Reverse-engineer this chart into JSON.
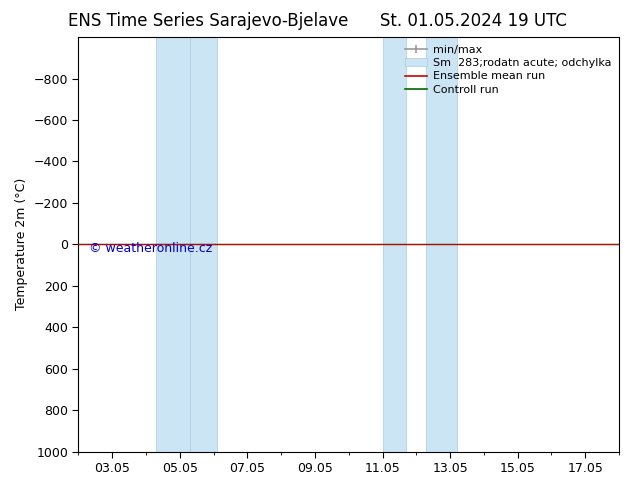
{
  "title": "ENS Time Series Sarajevo-Bjelave",
  "date_str": "St. 01.05.2024 19 UTC",
  "ylabel": "Temperature 2m (°C)",
  "watermark": "© weatheronline.cz",
  "ylim_bottom": -1000,
  "ylim_top": 1000,
  "yticks": [
    -800,
    -600,
    -400,
    -200,
    0,
    200,
    400,
    600,
    800,
    1000
  ],
  "xtick_labels": [
    "03.05",
    "05.05",
    "07.05",
    "09.05",
    "11.05",
    "13.05",
    "15.05",
    "17.05"
  ],
  "xtick_positions": [
    3,
    5,
    7,
    9,
    11,
    13,
    15,
    17
  ],
  "x_min": 2.0,
  "x_max": 18.0,
  "shaded_bands": [
    {
      "x_start": 4.3,
      "x_end": 5.3
    },
    {
      "x_start": 5.3,
      "x_end": 6.1
    },
    {
      "x_start": 11.0,
      "x_end": 11.7
    },
    {
      "x_start": 12.3,
      "x_end": 13.2
    }
  ],
  "shaded_color": "#cce5f5",
  "shaded_band_border_color": "#a8cce0",
  "horizontal_line_y": 0,
  "ensemble_mean_color": "#cc0000",
  "control_run_color": "#006600",
  "minmax_color": "#999999",
  "background_color": "#ffffff",
  "legend_labels": [
    "min/max",
    "Sm  283;rodatn acute; odchylka",
    "Ensemble mean run",
    "Controll run"
  ],
  "legend_colors": [
    "#999999",
    "#cce5f5",
    "#cc0000",
    "#006600"
  ],
  "title_fontsize": 12,
  "axis_label_fontsize": 9,
  "tick_fontsize": 9,
  "legend_fontsize": 8,
  "watermark_fontsize": 9,
  "figsize": [
    6.34,
    4.9
  ],
  "dpi": 100
}
